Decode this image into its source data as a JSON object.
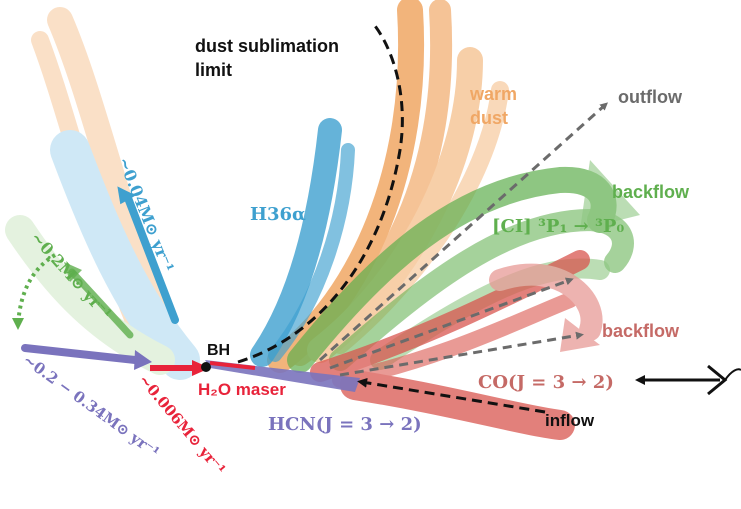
{
  "labels": {
    "dust_sublimation": [
      "dust sublimation",
      "limit"
    ],
    "warm_dust": [
      "warm",
      "dust"
    ],
    "outflow": "outflow",
    "backflow_top": "backflow",
    "backflow_bottom": "backflow",
    "h36": "H36α",
    "ci_line": "[CI] ³P₁ → ³P₀",
    "bh": "BH",
    "h2o": "H₂O maser",
    "hcn": "HCN(J = 3 → 2)",
    "co": "CO(J = 3 → 2)",
    "inflow": "inflow",
    "rate_004": "~0.04M⊙ yr⁻¹",
    "rate_02": "~0.2M⊙ yr⁻¹",
    "rate_0006": "~0.006M⊙ yr⁻¹",
    "rate_hcn": "~0.2 − 0.34M⊙ yr⁻¹"
  },
  "colors": {
    "dust": "#f0a765",
    "dust_light": "#f6c79a",
    "h36": "#3ea0cf",
    "h36_light": "#a9d7ef",
    "ci": "#5faf4e",
    "co": "#d9564f",
    "co_light": "#e89a96",
    "hcn": "#7a73bd",
    "h2o": "#e8233a",
    "grey": "#6b6b6b",
    "black": "#111111"
  }
}
